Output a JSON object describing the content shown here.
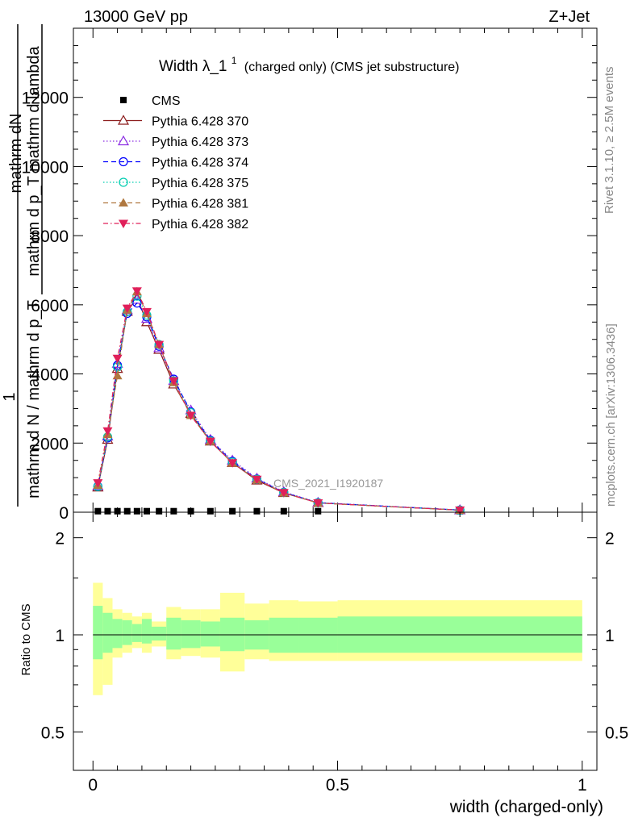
{
  "header": {
    "left": "13000 GeV pp",
    "right": "Z+Jet"
  },
  "title": {
    "main": "Width λ_1",
    "sup": "1",
    "rest": "(charged only) (CMS jet substructure)"
  },
  "side_labels": {
    "rivet": "Rivet 3.1.10, ≥ 2.5M events",
    "mcplots": "mcplots.cern.ch [arXiv:1306.3436]"
  },
  "watermark": "CMS_2021_I1920187",
  "main_ylabel": {
    "numerator_one": "1",
    "numerator": "mathrm dN",
    "numerator_sub": "mathrm d p_T mathrm d lambda",
    "denominator": "mathrm d N / mathrm d p_T"
  },
  "ratio_ylabel": "Ratio to CMS",
  "xlabel": "width (charged-only)",
  "colors": {
    "cms": "#000000",
    "p370": "#8b1a1a",
    "p373": "#8a2be2",
    "p374": "#0000ff",
    "p375": "#00cdb0",
    "p381": "#b07840",
    "p382": "#e0205a",
    "band_inner": "#99ff99",
    "band_outer": "#ffff99"
  },
  "chart_data": [
    {
      "type": "line",
      "panel": "main",
      "x_ticks": [
        "0",
        "0.5",
        "1"
      ],
      "y_ticks": [
        "0",
        "2000",
        "4000",
        "6000",
        "8000",
        "10000",
        "12000"
      ],
      "xlim": [
        -0.04,
        1.03
      ],
      "ylim": [
        0,
        14000
      ],
      "legend_position": "top-left",
      "x": [
        0.01,
        0.03,
        0.05,
        0.07,
        0.09,
        0.11,
        0.135,
        0.165,
        0.2,
        0.24,
        0.285,
        0.335,
        0.39,
        0.46,
        0.75
      ],
      "series": [
        {
          "name": "CMS",
          "marker": "square",
          "values": [
            30,
            30,
            30,
            30,
            30,
            30,
            30,
            30,
            30,
            30,
            30,
            30,
            30,
            30,
            30
          ]
        },
        {
          "name": "Pythia 6.428 370",
          "marker": "open-triangle",
          "dash": "solid",
          "values": [
            720,
            2100,
            4150,
            5800,
            6200,
            5500,
            4700,
            3700,
            2850,
            2050,
            1430,
            920,
            560,
            270,
            60
          ]
        },
        {
          "name": "Pythia 6.428 373",
          "marker": "open-triangle",
          "dash": "dotted",
          "values": [
            760,
            2200,
            4300,
            5850,
            6150,
            5600,
            4750,
            3800,
            2950,
            2100,
            1500,
            980,
            590,
            280,
            65
          ]
        },
        {
          "name": "Pythia 6.428 374",
          "marker": "open-circle",
          "dash": "dashed",
          "values": [
            750,
            2150,
            4250,
            5750,
            6050,
            5650,
            4800,
            3850,
            2900,
            2080,
            1470,
            960,
            575,
            275,
            62
          ]
        },
        {
          "name": "Pythia 6.428 375",
          "marker": "open-circle",
          "dash": "dotted",
          "values": [
            740,
            2180,
            4200,
            5800,
            6250,
            5700,
            4850,
            3800,
            2880,
            2060,
            1450,
            950,
            570,
            270,
            60
          ]
        },
        {
          "name": "Pythia 6.428 381",
          "marker": "filled-triangle",
          "dash": "dashed",
          "values": [
            780,
            2250,
            3950,
            5850,
            6380,
            5750,
            4850,
            3750,
            2800,
            2050,
            1420,
            940,
            560,
            265,
            58
          ]
        },
        {
          "name": "Pythia 6.428 382",
          "marker": "filled-triangle-down",
          "dash": "dashdot",
          "values": [
            850,
            2350,
            4450,
            5900,
            6400,
            5800,
            4850,
            3800,
            2800,
            2050,
            1430,
            950,
            565,
            268,
            60
          ]
        }
      ]
    },
    {
      "type": "area",
      "panel": "ratio",
      "x_ticks": [
        "0",
        "0.5",
        "1"
      ],
      "y_ticks": [
        "0.5",
        "1",
        "2"
      ],
      "xlim": [
        -0.04,
        1.03
      ],
      "ylim": [
        0.38,
        2.4
      ],
      "reference": 1,
      "bin_edges": [
        0,
        0.02,
        0.04,
        0.06,
        0.08,
        0.1,
        0.12,
        0.15,
        0.18,
        0.22,
        0.26,
        0.31,
        0.36,
        0.42,
        0.5,
        1.0
      ],
      "inner_upper": [
        1.23,
        1.17,
        1.12,
        1.11,
        1.08,
        1.12,
        1.06,
        1.13,
        1.11,
        1.1,
        1.13,
        1.11,
        1.13,
        1.13,
        1.14
      ],
      "inner_lower": [
        0.84,
        0.88,
        0.91,
        0.93,
        0.95,
        0.94,
        0.96,
        0.9,
        0.91,
        0.92,
        0.89,
        0.9,
        0.88,
        0.88,
        0.88
      ],
      "outer_upper": [
        1.45,
        1.3,
        1.2,
        1.17,
        1.14,
        1.17,
        1.1,
        1.22,
        1.2,
        1.2,
        1.35,
        1.25,
        1.28,
        1.27,
        1.28
      ],
      "outer_lower": [
        0.65,
        0.7,
        0.85,
        0.88,
        0.91,
        0.88,
        0.92,
        0.84,
        0.86,
        0.85,
        0.77,
        0.84,
        0.83,
        0.83,
        0.83
      ]
    }
  ]
}
